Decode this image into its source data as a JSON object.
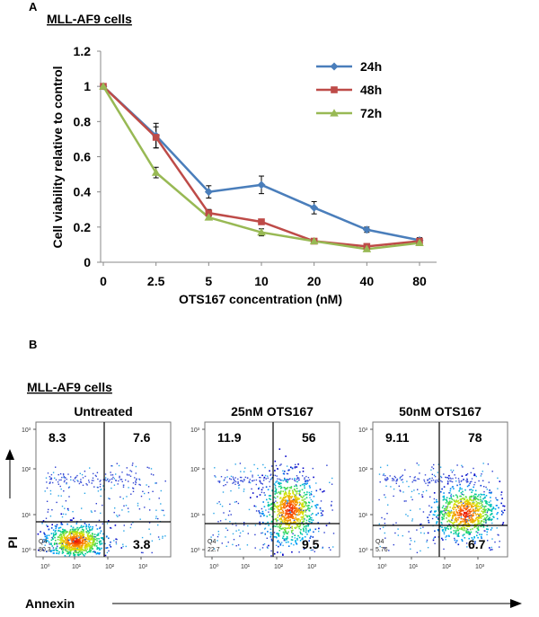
{
  "panel_a": {
    "label": "A",
    "subtitle": "MLL-AF9 cells"
  },
  "panel_b": {
    "label": "B",
    "subtitle": "MLL-AF9 cells",
    "x_axis_label": "Annexin",
    "y_axis_label": "PI",
    "tick_labels_x": [
      "10⁰",
      "10¹",
      "10²",
      "10³"
    ],
    "tick_labels_y": [
      "10⁰",
      "10¹",
      "10²",
      "10³"
    ],
    "plots": [
      {
        "title": "Untreated",
        "q1": "8.3",
        "q2": "7.6",
        "q3": "3.8",
        "q4_label": "Q4",
        "q4": "80.3"
      },
      {
        "title": "25nM OTS167",
        "q1": "11.9",
        "q2": "56",
        "q3": "9.5",
        "q4_label": "Q4",
        "q4": "22.7"
      },
      {
        "title": "50nM OTS167",
        "q1": "9.11",
        "q2": "78",
        "q3": "6.7",
        "q4_label": "Q4",
        "q4": "5.76"
      }
    ]
  },
  "chart_data": {
    "type": "line",
    "title": "MLL-AF9 cells",
    "xlabel": "OTS167 concentration (nM)",
    "ylabel": "Cell viability relative to control",
    "categories": [
      "0",
      "2.5",
      "5",
      "10",
      "20",
      "40",
      "80"
    ],
    "ylim": [
      0,
      1.2
    ],
    "yticks": [
      "0",
      "0.2",
      "0.4",
      "0.6",
      "0.8",
      "1",
      "1.2"
    ],
    "legend_position": "top-right",
    "grid": false,
    "series": [
      {
        "name": "24h",
        "color": "#4a7ebb",
        "marker": "diamond",
        "values": [
          1.0,
          0.72,
          0.4,
          0.44,
          0.31,
          0.185,
          0.125
        ],
        "errors": [
          0,
          0.07,
          0.035,
          0.05,
          0.035,
          0.015,
          0.01
        ]
      },
      {
        "name": "48h",
        "color": "#be4b48",
        "marker": "square",
        "values": [
          1.0,
          0.71,
          0.28,
          0.23,
          0.12,
          0.09,
          0.12
        ],
        "errors": [
          0,
          0.06,
          0.02,
          0.015,
          0.01,
          0.015,
          0.02
        ]
      },
      {
        "name": "72h",
        "color": "#98b954",
        "marker": "triangle",
        "values": [
          1.0,
          0.51,
          0.255,
          0.17,
          0.12,
          0.075,
          0.11
        ],
        "errors": [
          0,
          0.03,
          0.015,
          0.02,
          0.01,
          0.01,
          0.015
        ]
      }
    ]
  }
}
